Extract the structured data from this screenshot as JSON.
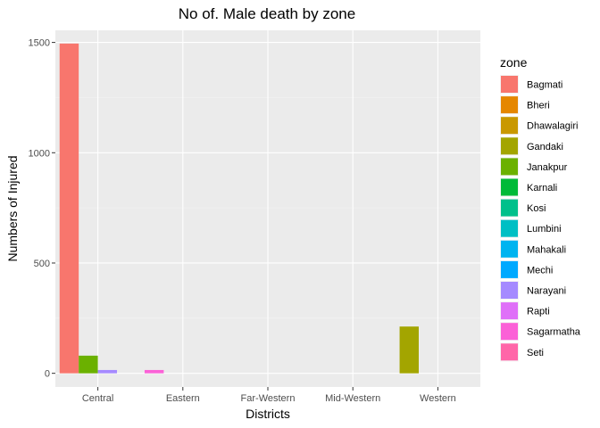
{
  "chart_data": {
    "type": "bar",
    "title": "No of. Male death by zone",
    "xlabel": "Districts",
    "ylabel": "Numbers of Injured",
    "categories": [
      "Central",
      "Eastern",
      "Far-Western",
      "Mid-Western",
      "Western"
    ],
    "ylim": [
      -62,
      1555
    ],
    "yticks": [
      0,
      500,
      1000,
      1500
    ],
    "grid": true,
    "legend": {
      "title": "zone",
      "position": "right"
    },
    "bar_groups": 4,
    "series": [
      {
        "name": "Bagmati",
        "color": "#F8766D",
        "values": [
          1495,
          0,
          0,
          0,
          0
        ]
      },
      {
        "name": "Bheri",
        "color": "#E58700",
        "values": [
          0,
          0,
          0,
          0,
          0
        ]
      },
      {
        "name": "Dhawalagiri",
        "color": "#C99800",
        "values": [
          0,
          0,
          0,
          0,
          0
        ]
      },
      {
        "name": "Gandaki",
        "color": "#A3A500",
        "values": [
          0,
          0,
          0,
          0,
          212
        ]
      },
      {
        "name": "Janakpur",
        "color": "#6BB100",
        "values": [
          80,
          0,
          0,
          0,
          0
        ]
      },
      {
        "name": "Karnali",
        "color": "#00BA38",
        "values": [
          0,
          0,
          0,
          0,
          0
        ]
      },
      {
        "name": "Kosi",
        "color": "#00C08B",
        "values": [
          0,
          0,
          0,
          0,
          0
        ]
      },
      {
        "name": "Lumbini",
        "color": "#00BFC4",
        "values": [
          0,
          0,
          0,
          0,
          0
        ]
      },
      {
        "name": "Mahakali",
        "color": "#00B4F0",
        "values": [
          0,
          0,
          0,
          0,
          0
        ]
      },
      {
        "name": "Mechi",
        "color": "#00A9FF",
        "values": [
          0,
          0,
          0,
          0,
          0
        ]
      },
      {
        "name": "Narayani",
        "color": "#A58AFF",
        "values": [
          15,
          0,
          0,
          0,
          0
        ]
      },
      {
        "name": "Rapti",
        "color": "#DF70F8",
        "values": [
          0,
          0,
          0,
          0,
          0
        ]
      },
      {
        "name": "Sagarmatha",
        "color": "#FB61D7",
        "values": [
          0,
          15,
          0,
          0,
          0
        ]
      },
      {
        "name": "Seti",
        "color": "#FF66A8",
        "values": [
          0,
          0,
          0,
          0,
          0
        ]
      }
    ],
    "colors": {
      "panel": "#EBEBEB",
      "grid_major": "#FFFFFF",
      "grid_minor": "#F4F4F4"
    }
  }
}
